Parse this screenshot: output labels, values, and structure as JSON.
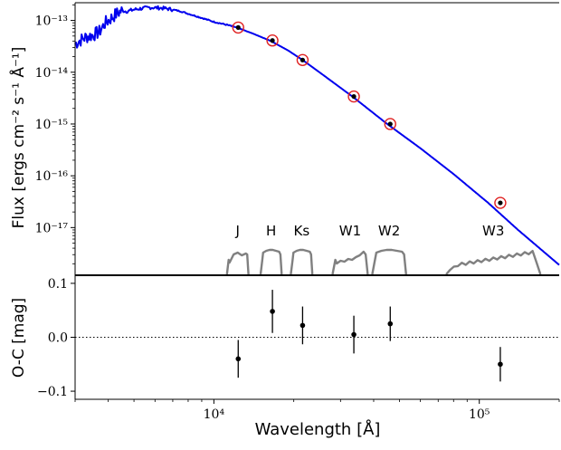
{
  "chart_data": [
    {
      "type": "line",
      "panel": "sed",
      "ylabel": "Flux [ergs cm⁻² s⁻¹ Å⁻¹]",
      "xscale": "log",
      "yscale": "log",
      "xlim": [
        3000,
        200000
      ],
      "ylim": [
        1.2e-18,
        2.2e-13
      ],
      "ytick_labels": [
        "10⁻¹³",
        "10⁻¹⁴",
        "10⁻¹⁵",
        "10⁻¹⁶",
        "10⁻¹⁷"
      ],
      "ytick_values": [
        1e-13,
        1e-14,
        1e-15,
        1e-16,
        1e-17
      ],
      "model_color": "#0000ee",
      "model_curve": {
        "x": [
          3000,
          3100,
          3300,
          3500,
          3700,
          3900,
          4100,
          4300,
          4500,
          4700,
          5000,
          5400,
          5800,
          6200,
          6600,
          7000,
          7500,
          8000,
          9000,
          10000,
          11000,
          12200,
          14000,
          16400,
          19000,
          21600,
          26000,
          33500,
          45000,
          60000,
          80000,
          108000,
          140000,
          200000
        ],
        "y": [
          3.5e-14,
          4e-14,
          4.8e-14,
          5.2e-14,
          6e-14,
          9e-14,
          1.1e-13,
          1.35e-13,
          1.55e-13,
          1.5e-13,
          1.62e-13,
          1.72e-13,
          1.78e-13,
          1.75e-13,
          1.7e-13,
          1.62e-13,
          1.5e-13,
          1.35e-13,
          1.12e-13,
          9.4e-14,
          8.4e-14,
          7.3e-14,
          5.6e-14,
          4e-14,
          2.65e-14,
          1.72e-14,
          8.6e-15,
          3.3e-15,
          1e-15,
          3.4e-16,
          1.08e-16,
          3e-17,
          9e-18,
          1.9e-18
        ]
      },
      "photometry": {
        "x": [
          12350,
          16620,
          21590,
          33680,
          46180,
          120000
        ],
        "y": [
          7.3e-14,
          4.1e-14,
          1.72e-14,
          3.4e-15,
          1e-15,
          3e-17
        ],
        "marker": "black dot with red open circle"
      },
      "filters": [
        {
          "name": "J",
          "x0": 11200,
          "x1": 13500
        },
        {
          "name": "H",
          "x0": 15000,
          "x1": 18000
        },
        {
          "name": "Ks",
          "x0": 19500,
          "x1": 23500
        },
        {
          "name": "W1",
          "x0": 28000,
          "x1": 38000
        },
        {
          "name": "W2",
          "x0": 39500,
          "x1": 53000
        },
        {
          "name": "W3",
          "x0": 75000,
          "x1": 170000
        }
      ],
      "filter_color": "#808080",
      "grid": false
    },
    {
      "type": "scatter",
      "panel": "residuals",
      "xlabel": "Wavelength [Å]",
      "ylabel": "O-C [mag]",
      "xscale": "log",
      "xlim": [
        3000,
        200000
      ],
      "ylim": [
        -0.115,
        0.115
      ],
      "ytick_labels": [
        "0.1",
        "0.0",
        "−0.1"
      ],
      "ytick_values": [
        0.1,
        0.0,
        -0.1
      ],
      "xtick_labels": [
        "10⁴",
        "10⁵"
      ],
      "xtick_values": [
        10000,
        100000
      ],
      "zero_line": "dotted",
      "points": [
        {
          "x": 12350,
          "y": -0.04,
          "err": 0.035
        },
        {
          "x": 16620,
          "y": 0.048,
          "err": 0.04
        },
        {
          "x": 21590,
          "y": 0.022,
          "err": 0.035
        },
        {
          "x": 33680,
          "y": 0.005,
          "err": 0.035
        },
        {
          "x": 46180,
          "y": 0.025,
          "err": 0.032
        },
        {
          "x": 120000,
          "y": -0.05,
          "err": 0.032
        }
      ]
    }
  ],
  "labels": {
    "sed_ylabel": "Flux [ergs cm⁻² s⁻¹ Å⁻¹]",
    "res_ylabel": "O-C [mag]",
    "xlabel": "Wavelength [Å]"
  }
}
